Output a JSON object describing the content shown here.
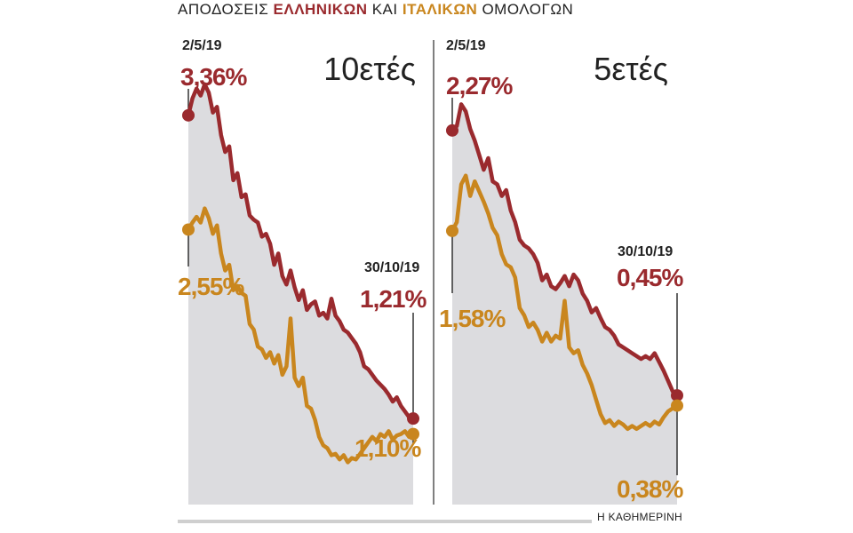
{
  "title": {
    "pre": "ΑΠΟΔΟΣΕΙΣ ",
    "greek": "ΕΛΛΗΝΙΚΩΝ",
    "mid": " ΚΑΙ ",
    "italian": "ΙΤΑΛΙΚΩΝ",
    "post": " ΟΜΟΛΟΓΩΝ"
  },
  "source": "Η ΚΑΘΗΜΕΡΙΝΗ",
  "colors": {
    "greek": "#9a2a2e",
    "italian": "#c9861e",
    "area": "#dcdcdf",
    "divider": "#555555"
  },
  "chart_data": [
    {
      "type": "line",
      "panel_title": "10ετές",
      "x_start_label": "2/5/19",
      "x_end_label": "30/10/19",
      "ylim": [
        0.6,
        3.8
      ],
      "series": [
        {
          "start_label": "3,36%",
          "end_label": "1,21%",
          "values": [
            3.36,
            3.48,
            3.55,
            3.5,
            3.58,
            3.52,
            3.38,
            3.42,
            3.22,
            3.1,
            3.14,
            2.9,
            2.95,
            2.78,
            2.8,
            2.65,
            2.62,
            2.6,
            2.5,
            2.52,
            2.45,
            2.3,
            2.38,
            2.22,
            2.16,
            2.26,
            2.14,
            2.05,
            2.12,
            1.98,
            2.02,
            2.04,
            1.94,
            1.96,
            1.92,
            2.06,
            1.94,
            1.9,
            1.84,
            1.82,
            1.78,
            1.74,
            1.68,
            1.58,
            1.56,
            1.52,
            1.48,
            1.45,
            1.42,
            1.38,
            1.33,
            1.36,
            1.3,
            1.26,
            1.22,
            1.21
          ]
        },
        {
          "start_label": "2,55%",
          "end_label": "1,10%",
          "values": [
            2.55,
            2.6,
            2.64,
            2.6,
            2.7,
            2.63,
            2.52,
            2.58,
            2.38,
            2.26,
            2.3,
            2.12,
            2.15,
            2.1,
            2.08,
            1.88,
            1.84,
            1.72,
            1.7,
            1.64,
            1.68,
            1.6,
            1.66,
            1.52,
            1.58,
            1.92,
            1.5,
            1.44,
            1.5,
            1.3,
            1.28,
            1.2,
            1.08,
            1.02,
            1.0,
            0.95,
            0.96,
            0.92,
            0.95,
            0.9,
            0.93,
            0.92,
            0.96,
            1.0,
            1.04,
            1.08,
            1.05,
            1.1,
            1.08,
            1.12,
            1.06,
            1.09,
            1.1,
            1.12,
            1.08,
            1.1
          ]
        }
      ]
    },
    {
      "type": "line",
      "panel_title": "5ετές",
      "x_start_label": "2/5/19",
      "x_end_label": "30/10/19",
      "ylim": [
        -0.3,
        2.8
      ],
      "series": [
        {
          "start_label": "2,27%",
          "end_label": "0,45%",
          "values": [
            2.27,
            2.3,
            2.45,
            2.4,
            2.28,
            2.2,
            2.1,
            2.0,
            2.08,
            1.92,
            1.9,
            1.82,
            1.86,
            1.72,
            1.64,
            1.52,
            1.48,
            1.46,
            1.42,
            1.36,
            1.24,
            1.28,
            1.2,
            1.18,
            1.22,
            1.27,
            1.2,
            1.28,
            1.24,
            1.15,
            1.1,
            1.02,
            1.05,
            0.98,
            0.92,
            0.9,
            0.86,
            0.8,
            0.78,
            0.76,
            0.74,
            0.72,
            0.7,
            0.72,
            0.7,
            0.74,
            0.68,
            0.62,
            0.55,
            0.48,
            0.45
          ]
        },
        {
          "start_label": "1,58%",
          "end_label": "0,38%",
          "values": [
            1.58,
            1.64,
            1.9,
            1.96,
            1.82,
            1.92,
            1.85,
            1.78,
            1.7,
            1.6,
            1.55,
            1.42,
            1.35,
            1.33,
            1.26,
            1.05,
            1.0,
            0.92,
            0.95,
            0.9,
            0.82,
            0.88,
            0.82,
            0.86,
            0.84,
            1.1,
            0.78,
            0.74,
            0.76,
            0.66,
            0.6,
            0.52,
            0.42,
            0.32,
            0.26,
            0.28,
            0.24,
            0.27,
            0.25,
            0.22,
            0.24,
            0.22,
            0.24,
            0.26,
            0.24,
            0.27,
            0.25,
            0.3,
            0.34,
            0.36,
            0.38
          ]
        }
      ]
    }
  ]
}
